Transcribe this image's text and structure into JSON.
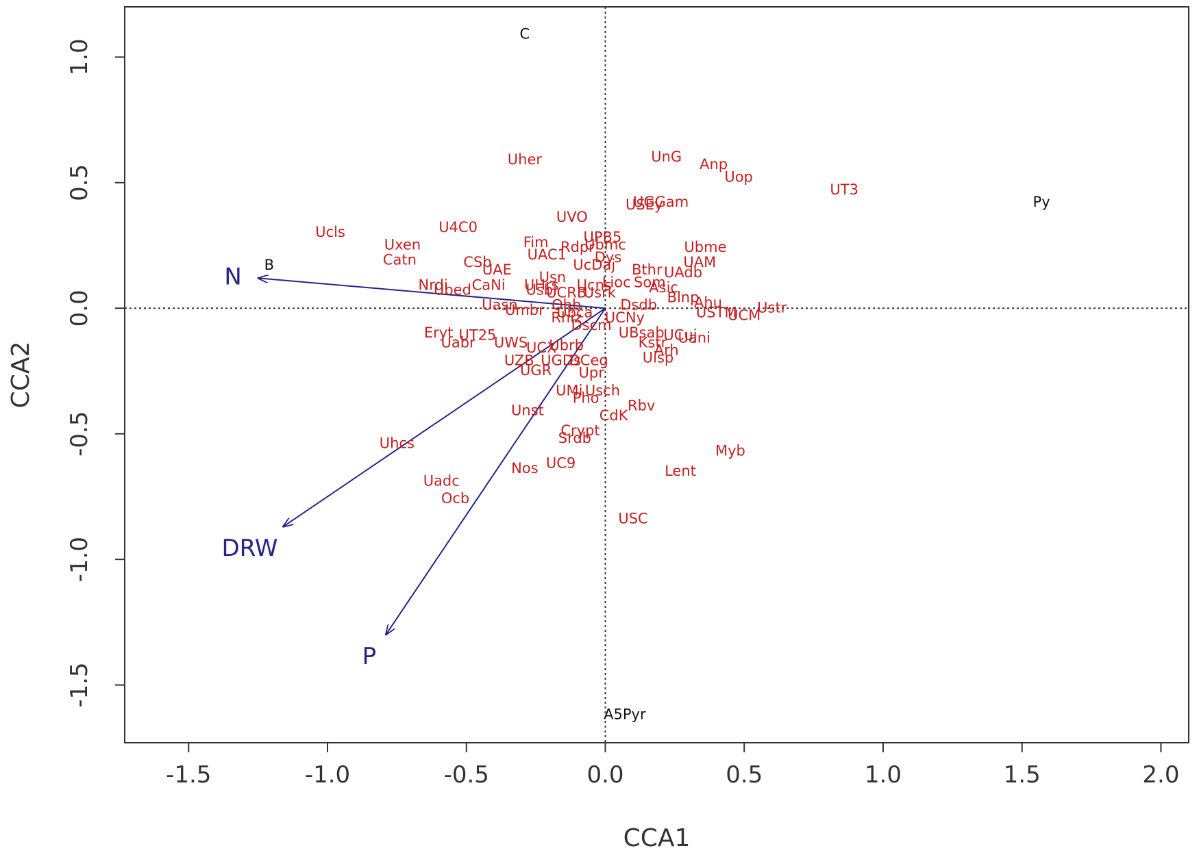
{
  "chart_data": {
    "type": "scatter",
    "subtype": "CCA biplot",
    "title": "",
    "xlabel": "CCA1",
    "ylabel": "CCA2",
    "xlim": [
      -1.73,
      2.1
    ],
    "ylim": [
      -1.73,
      1.2
    ],
    "x_ticks": [
      -1.5,
      -1.0,
      -0.5,
      0.0,
      0.5,
      1.0,
      1.5,
      2.0
    ],
    "x_tick_labels": [
      "-1.5",
      "-1.0",
      "-0.5",
      "0.0",
      "0.5",
      "1.0",
      "1.5",
      "2.0"
    ],
    "y_ticks": [
      1.0,
      0.5,
      0.0,
      -0.5,
      -1.0,
      -1.5
    ],
    "y_tick_labels": [
      "1.0",
      "0.5",
      "0.0",
      "-0.5",
      "-1.0",
      "-1.5"
    ],
    "reference_lines": {
      "x": 0,
      "y": 0,
      "style": "dotted"
    },
    "colors": {
      "species": "#c62020",
      "sites": "#111111",
      "env": "#27248a",
      "axis": "#333333"
    },
    "env_vectors": [
      {
        "name": "N",
        "x": -1.25,
        "y": 0.12,
        "label_x": -1.34,
        "label_y": 0.12
      },
      {
        "name": "DRW",
        "x": -1.16,
        "y": -0.87,
        "label_x": -1.28,
        "label_y": -0.96
      },
      {
        "name": "P",
        "x": -0.79,
        "y": -1.3,
        "label_x": -0.85,
        "label_y": -1.39
      }
    ],
    "sites": [
      {
        "label": "C",
        "x": -0.29,
        "y": 1.09
      },
      {
        "label": "B",
        "x": -1.21,
        "y": 0.17
      },
      {
        "label": "Py",
        "x": 1.57,
        "y": 0.42
      },
      {
        "label": "A5Pyr",
        "x": 0.07,
        "y": -1.62
      }
    ],
    "species": [
      {
        "label": "Uher",
        "x": -0.29,
        "y": 0.59
      },
      {
        "label": "UnG",
        "x": 0.22,
        "y": 0.6
      },
      {
        "label": "Anp",
        "x": 0.39,
        "y": 0.57
      },
      {
        "label": "Uop",
        "x": 0.48,
        "y": 0.52
      },
      {
        "label": "UT3",
        "x": 0.86,
        "y": 0.47
      },
      {
        "label": "USEy",
        "x": 0.14,
        "y": 0.41
      },
      {
        "label": "UGGam",
        "x": 0.2,
        "y": 0.42
      },
      {
        "label": "UVO",
        "x": -0.12,
        "y": 0.36
      },
      {
        "label": "Ucls",
        "x": -0.99,
        "y": 0.3
      },
      {
        "label": "U4C0",
        "x": -0.53,
        "y": 0.32
      },
      {
        "label": "Uxen",
        "x": -0.73,
        "y": 0.25
      },
      {
        "label": "Catn",
        "x": -0.74,
        "y": 0.19
      },
      {
        "label": "Fim",
        "x": -0.25,
        "y": 0.26
      },
      {
        "label": "UPB5",
        "x": -0.01,
        "y": 0.28
      },
      {
        "label": "Rdpr",
        "x": -0.1,
        "y": 0.24
      },
      {
        "label": "Ubmc",
        "x": 0.0,
        "y": 0.25
      },
      {
        "label": "UAC1",
        "x": -0.21,
        "y": 0.21
      },
      {
        "label": "Dys",
        "x": 0.01,
        "y": 0.2
      },
      {
        "label": "Ubme",
        "x": 0.36,
        "y": 0.24
      },
      {
        "label": "CSb",
        "x": -0.46,
        "y": 0.18
      },
      {
        "label": "UAE",
        "x": -0.39,
        "y": 0.15
      },
      {
        "label": "UcDaj",
        "x": -0.04,
        "y": 0.17
      },
      {
        "label": "UAM",
        "x": 0.34,
        "y": 0.18
      },
      {
        "label": "Bthr",
        "x": 0.15,
        "y": 0.15
      },
      {
        "label": "UAdb",
        "x": 0.28,
        "y": 0.14
      },
      {
        "label": "Usn",
        "x": -0.19,
        "y": 0.12
      },
      {
        "label": "Nrdi",
        "x": -0.62,
        "y": 0.09
      },
      {
        "label": "CaNi",
        "x": -0.42,
        "y": 0.09
      },
      {
        "label": "Ubed",
        "x": -0.55,
        "y": 0.07
      },
      {
        "label": "UHrs",
        "x": -0.23,
        "y": 0.09
      },
      {
        "label": "Ucns",
        "x": -0.04,
        "y": 0.09
      },
      {
        "label": "Lioc",
        "x": 0.04,
        "y": 0.1
      },
      {
        "label": "Som",
        "x": 0.16,
        "y": 0.1
      },
      {
        "label": "Usbi",
        "x": -0.23,
        "y": 0.07
      },
      {
        "label": "Asic",
        "x": 0.21,
        "y": 0.08
      },
      {
        "label": "UCRB",
        "x": -0.14,
        "y": 0.06
      },
      {
        "label": "Usrk",
        "x": -0.02,
        "y": 0.06
      },
      {
        "label": "Blnp",
        "x": 0.28,
        "y": 0.04
      },
      {
        "label": "Ahu",
        "x": 0.37,
        "y": 0.02
      },
      {
        "label": "Ustr",
        "x": 0.6,
        "y": 0.0
      },
      {
        "label": "Uasn",
        "x": -0.38,
        "y": 0.01
      },
      {
        "label": "Ohb",
        "x": -0.14,
        "y": 0.01
      },
      {
        "label": "Dsdb",
        "x": 0.12,
        "y": 0.01
      },
      {
        "label": "Umbr",
        "x": -0.29,
        "y": -0.01
      },
      {
        "label": "Ubca",
        "x": -0.11,
        "y": -0.02
      },
      {
        "label": "USTM",
        "x": 0.4,
        "y": -0.02
      },
      {
        "label": "UCM",
        "x": 0.5,
        "y": -0.03
      },
      {
        "label": "Rhiz",
        "x": -0.14,
        "y": -0.04
      },
      {
        "label": "UCNy",
        "x": 0.07,
        "y": -0.04
      },
      {
        "label": "Dscm",
        "x": -0.05,
        "y": -0.07
      },
      {
        "label": "UBsab",
        "x": 0.13,
        "y": -0.1
      },
      {
        "label": "Eryt",
        "x": -0.6,
        "y": -0.1
      },
      {
        "label": "UT25",
        "x": -0.46,
        "y": -0.11
      },
      {
        "label": "UCuj",
        "x": 0.27,
        "y": -0.11
      },
      {
        "label": "Uani",
        "x": 0.32,
        "y": -0.12
      },
      {
        "label": "Uabr",
        "x": -0.53,
        "y": -0.14
      },
      {
        "label": "UWS",
        "x": -0.34,
        "y": -0.14
      },
      {
        "label": "Kstr",
        "x": 0.17,
        "y": -0.14
      },
      {
        "label": "UCX",
        "x": -0.23,
        "y": -0.16
      },
      {
        "label": "Ubrb",
        "x": -0.14,
        "y": -0.15
      },
      {
        "label": "Arh",
        "x": 0.22,
        "y": -0.17
      },
      {
        "label": "Uisp",
        "x": 0.19,
        "y": -0.2
      },
      {
        "label": "UZB",
        "x": -0.31,
        "y": -0.21
      },
      {
        "label": "UGDs",
        "x": -0.16,
        "y": -0.21
      },
      {
        "label": "DCeg",
        "x": -0.06,
        "y": -0.21
      },
      {
        "label": "UGR",
        "x": -0.25,
        "y": -0.25
      },
      {
        "label": "Upr",
        "x": -0.05,
        "y": -0.26
      },
      {
        "label": "UMi",
        "x": -0.13,
        "y": -0.33
      },
      {
        "label": "Usch",
        "x": -0.01,
        "y": -0.33
      },
      {
        "label": "Pho",
        "x": -0.07,
        "y": -0.36
      },
      {
        "label": "Rbv",
        "x": 0.13,
        "y": -0.39
      },
      {
        "label": "Unst",
        "x": -0.28,
        "y": -0.41
      },
      {
        "label": "CdK",
        "x": 0.03,
        "y": -0.43
      },
      {
        "label": "Crypt",
        "x": -0.09,
        "y": -0.49
      },
      {
        "label": "Srdb",
        "x": -0.11,
        "y": -0.52
      },
      {
        "label": "Uhcs",
        "x": -0.75,
        "y": -0.54
      },
      {
        "label": "Myb",
        "x": 0.45,
        "y": -0.57
      },
      {
        "label": "UC9",
        "x": -0.16,
        "y": -0.62
      },
      {
        "label": "Nos",
        "x": -0.29,
        "y": -0.64
      },
      {
        "label": "Lent",
        "x": 0.27,
        "y": -0.65
      },
      {
        "label": "Uadc",
        "x": -0.59,
        "y": -0.69
      },
      {
        "label": "Ocb",
        "x": -0.54,
        "y": -0.76
      },
      {
        "label": "USC",
        "x": 0.1,
        "y": -0.84
      }
    ]
  }
}
